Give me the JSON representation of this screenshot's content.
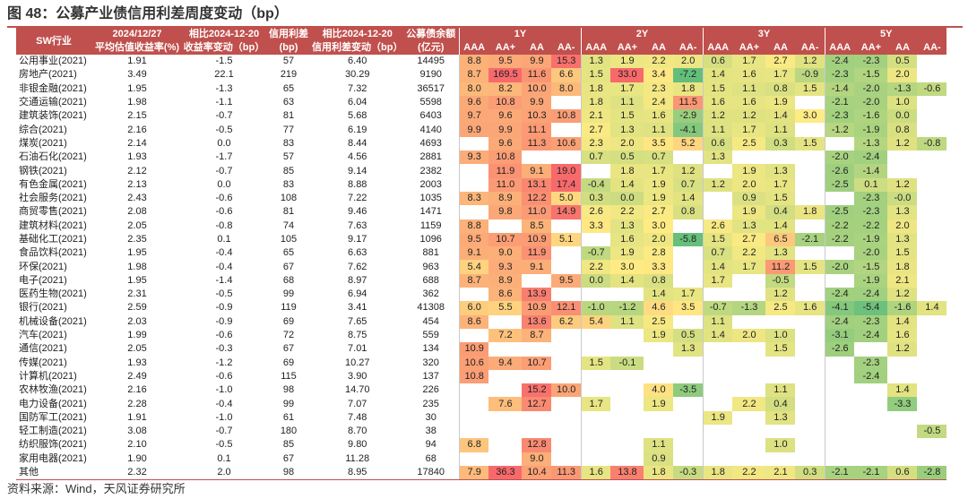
{
  "title": "图 48：公募产业债信用利差周度变动（bp）",
  "source": "资料来源：Wind，天风证券研究所",
  "colors": {
    "header": "#c0504d",
    "high": "#f8696b",
    "mid": "#ffeb84",
    "low": "#63be7b"
  },
  "header": {
    "c_industry": "SW行业",
    "c_yield_line1": "2024/12/27",
    "c_yield_line2": "平均估值收益率(%)",
    "c_ychg_line1": "相比2024-12-20",
    "c_ychg_line2": "收益率变动（bp）",
    "c_spread_line1": "信用利差",
    "c_spread_line2": "(bp)",
    "c_schg_line1": "相比2024-12-20",
    "c_schg_line2": "信用利差变动（bp）",
    "c_bal_line1": "公募债余额",
    "c_bal_line2": "(亿元)",
    "tenors": [
      "1Y",
      "2Y",
      "3Y",
      "5Y"
    ],
    "ratings": [
      "AAA",
      "AA+",
      "AA",
      "AA-"
    ]
  },
  "rows": [
    {
      "name": "公用事业(2021)",
      "y": "1.91",
      "yc": "-1.5",
      "s": "57",
      "sc": "6.40",
      "b": "14495",
      "g": [
        "8.8",
        "9.5",
        "9.9",
        "15.3",
        "1.3",
        "1.9",
        "2.2",
        "2.0",
        "0.6",
        "1.7",
        "2.7",
        "1.2",
        "-2.4",
        "-2.3",
        "0.5",
        ""
      ]
    },
    {
      "name": "房地产(2021)",
      "y": "3.49",
      "yc": "22.1",
      "s": "219",
      "sc": "30.29",
      "b": "9190",
      "g": [
        "8.7",
        "169.5",
        "11.6",
        "6.6",
        "1.5",
        "33.0",
        "3.4",
        "-7.2",
        "1.4",
        "1.6",
        "1.7",
        "-0.9",
        "-2.3",
        "-1.5",
        "2.0",
        ""
      ]
    },
    {
      "name": "非银金融(2021)",
      "y": "1.95",
      "yc": "-1.3",
      "s": "65",
      "sc": "7.32",
      "b": "36517",
      "g": [
        "8.0",
        "8.2",
        "10.0",
        "8.0",
        "1.8",
        "1.7",
        "2.3",
        "1.8",
        "1.5",
        "1.1",
        "0.8",
        "1.5",
        "-1.4",
        "-2.0",
        "-1.3",
        "-0.6"
      ]
    },
    {
      "name": "交通运输(2021)",
      "y": "1.98",
      "yc": "-1.1",
      "s": "63",
      "sc": "6.04",
      "b": "5598",
      "g": [
        "9.6",
        "10.8",
        "9.9",
        "",
        "1.8",
        "1.1",
        "2.4",
        "11.5",
        "1.6",
        "1.6",
        "1.9",
        "",
        "-2.1",
        "-2.0",
        "1.0",
        ""
      ]
    },
    {
      "name": "建筑装饰(2021)",
      "y": "2.15",
      "yc": "-0.7",
      "s": "81",
      "sc": "5.68",
      "b": "6403",
      "g": [
        "9.7",
        "9.6",
        "10.3",
        "10.8",
        "2.1",
        "1.5",
        "1.6",
        "-2.9",
        "1.2",
        "1.2",
        "1.4",
        "3.0",
        "-2.3",
        "-1.6",
        "0.0",
        ""
      ]
    },
    {
      "name": "综合(2021)",
      "y": "2.16",
      "yc": "-0.5",
      "s": "77",
      "sc": "6.19",
      "b": "4140",
      "g": [
        "9.9",
        "9.9",
        "11.1",
        "",
        "2.7",
        "1.3",
        "1.1",
        "-4.1",
        "1.1",
        "1.7",
        "1.1",
        "",
        "-1.2",
        "-1.9",
        "0.8",
        ""
      ]
    },
    {
      "name": "煤炭(2021)",
      "y": "2.14",
      "yc": "0.0",
      "s": "83",
      "sc": "8.44",
      "b": "4693",
      "g": [
        "",
        "9.6",
        "11.3",
        "10.6",
        "2.3",
        "2.0",
        "3.5",
        "5.2",
        "0.6",
        "2.5",
        "0.3",
        "1.5",
        "",
        "-1.3",
        "1.2",
        "-0.8"
      ]
    },
    {
      "name": "石油石化(2021)",
      "y": "1.93",
      "yc": "-1.7",
      "s": "57",
      "sc": "4.56",
      "b": "2881",
      "g": [
        "9.3",
        "10.8",
        "",
        "",
        "0.7",
        "0.5",
        "0.7",
        "",
        "1.3",
        "",
        "",
        "",
        "-2.0",
        "-2.4",
        "",
        ""
      ]
    },
    {
      "name": "钢铁(2021)",
      "y": "2.12",
      "yc": "-0.7",
      "s": "85",
      "sc": "9.14",
      "b": "2382",
      "g": [
        "",
        "11.9",
        "9.1",
        "19.0",
        "",
        "1.8",
        "1.7",
        "1.2",
        "",
        "1.9",
        "1.3",
        "",
        "-2.6",
        "-1.4",
        "",
        ""
      ]
    },
    {
      "name": "有色金属(2021)",
      "y": "2.13",
      "yc": "0.0",
      "s": "83",
      "sc": "8.88",
      "b": "2003",
      "g": [
        "",
        "11.0",
        "13.1",
        "17.4",
        "-0.4",
        "1.4",
        "1.9",
        "0.7",
        "1.2",
        "2.0",
        "1.7",
        "",
        "-2.5",
        "0.1",
        "1.2",
        ""
      ]
    },
    {
      "name": "社会服务(2021)",
      "y": "2.43",
      "yc": "-0.6",
      "s": "108",
      "sc": "7.22",
      "b": "1035",
      "g": [
        "8.3",
        "8.9",
        "12.2",
        "5.0",
        "0.3",
        "0.0",
        "1.9",
        "1.4",
        "",
        "0.9",
        "1.5",
        "",
        "",
        "-2.3",
        "-0.0",
        ""
      ]
    },
    {
      "name": "商贸零售(2021)",
      "y": "2.08",
      "yc": "-0.6",
      "s": "81",
      "sc": "9.46",
      "b": "1471",
      "g": [
        "",
        "9.8",
        "11.0",
        "14.9",
        "2.6",
        "2.2",
        "2.7",
        "0.8",
        "",
        "1.9",
        "0.4",
        "1.8",
        "-2.5",
        "-2.3",
        "1.3",
        ""
      ]
    },
    {
      "name": "建筑材料(2021)",
      "y": "2.05",
      "yc": "-0.8",
      "s": "74",
      "sc": "7.63",
      "b": "1159",
      "g": [
        "8.8",
        "",
        "8.5",
        "",
        "3.3",
        "1.3",
        "3.0",
        "",
        "2.6",
        "1.3",
        "1.4",
        "",
        "-2.2",
        "-2.2",
        "2.0",
        ""
      ]
    },
    {
      "name": "基础化工(2021)",
      "y": "2.35",
      "yc": "0.1",
      "s": "105",
      "sc": "9.17",
      "b": "1096",
      "g": [
        "9.5",
        "10.7",
        "10.9",
        "5.1",
        "",
        "1.6",
        "2.0",
        "-5.8",
        "1.5",
        "2.7",
        "6.5",
        "-2.1",
        "-2.2",
        "-1.9",
        "1.3",
        ""
      ]
    },
    {
      "name": "食品饮料(2021)",
      "y": "1.95",
      "yc": "-0.4",
      "s": "65",
      "sc": "6.63",
      "b": "881",
      "g": [
        "9.1",
        "9.0",
        "11.9",
        "",
        "-0.7",
        "1.9",
        "2.8",
        "",
        "0.7",
        "2.2",
        "1.3",
        "",
        "",
        "-2.0",
        "1.5",
        ""
      ]
    },
    {
      "name": "环保(2021)",
      "y": "1.98",
      "yc": "-0.4",
      "s": "67",
      "sc": "7.62",
      "b": "963",
      "g": [
        "5.4",
        "9.3",
        "9.1",
        "",
        "2.2",
        "3.0",
        "3.3",
        "",
        "1.4",
        "1.7",
        "11.2",
        "1.5",
        "-2.0",
        "-1.5",
        "1.8",
        ""
      ]
    },
    {
      "name": "电子(2021)",
      "y": "1.95",
      "yc": "-1.4",
      "s": "68",
      "sc": "8.97",
      "b": "688",
      "g": [
        "8.7",
        "8.9",
        "",
        "9.5",
        "0.0",
        "1.4",
        "0.8",
        "",
        "1.7",
        "",
        "-0.5",
        "",
        "",
        "-1.9",
        "2.1",
        ""
      ]
    },
    {
      "name": "医药生物(2021)",
      "y": "2.31",
      "yc": "-0.5",
      "s": "99",
      "sc": "6.94",
      "b": "362",
      "g": [
        "",
        "8.6",
        "13.9",
        "",
        "",
        "",
        "1.4",
        "1.7",
        "",
        "",
        "1.2",
        "",
        "-2.4",
        "-2.4",
        "1.2",
        ""
      ]
    },
    {
      "name": "银行(2021)",
      "y": "2.59",
      "yc": "-0.9",
      "s": "119",
      "sc": "3.41",
      "b": "41308",
      "g": [
        "6.0",
        "5.5",
        "10.9",
        "12.1",
        "-1.0",
        "-1.2",
        "4.6",
        "3.5",
        "-0.7",
        "-1.3",
        "2.5",
        "1.6",
        "-4.1",
        "-5.4",
        "-1.6",
        "1.4"
      ]
    },
    {
      "name": "机械设备(2021)",
      "y": "2.03",
      "yc": "-0.9",
      "s": "69",
      "sc": "7.65",
      "b": "454",
      "g": [
        "8.6",
        "",
        "13.6",
        "6.2",
        "5.4",
        "1.1",
        "2.5",
        "",
        "1.1",
        "",
        "",
        "",
        "-2.4",
        "-2.3",
        "1.4",
        ""
      ]
    },
    {
      "name": "汽车(2021)",
      "y": "1.99",
      "yc": "-0.6",
      "s": "72",
      "sc": "8.75",
      "b": "559",
      "g": [
        "",
        "7.2",
        "8.7",
        "",
        "",
        "",
        "1.9",
        "0.5",
        "1.4",
        "2.0",
        "1.0",
        "",
        "-3.1",
        "-2.4",
        "1.6",
        ""
      ]
    },
    {
      "name": "通信(2021)",
      "y": "2.05",
      "yc": "-0.3",
      "s": "67",
      "sc": "7.01",
      "b": "134",
      "g": [
        "10.9",
        "",
        "",
        "",
        "",
        "",
        "",
        "1.3",
        "",
        "",
        "1.5",
        "",
        "-2.6",
        "",
        "1.2",
        ""
      ]
    },
    {
      "name": "传媒(2021)",
      "y": "1.93",
      "yc": "-1.2",
      "s": "69",
      "sc": "10.27",
      "b": "320",
      "g": [
        "10.6",
        "9.4",
        "10.7",
        "",
        "1.5",
        "-0.1",
        "",
        "",
        "",
        "",
        "",
        "",
        "",
        "-2.3",
        "",
        ""
      ]
    },
    {
      "name": "计算机(2021)",
      "y": "2.49",
      "yc": "-0.6",
      "s": "115",
      "sc": "3.90",
      "b": "137",
      "g": [
        "10.8",
        "",
        "",
        "",
        "",
        "",
        "",
        "",
        "",
        "",
        "",
        "",
        "",
        "-2.4",
        "",
        ""
      ]
    },
    {
      "name": "农林牧渔(2021)",
      "y": "2.16",
      "yc": "-1.0",
      "s": "98",
      "sc": "14.70",
      "b": "226",
      "g": [
        "",
        "",
        "15.2",
        "10.0",
        "",
        "",
        "4.0",
        "-3.5",
        "",
        "",
        "1.1",
        "",
        "",
        "",
        "1.4",
        ""
      ]
    },
    {
      "name": "电力设备(2021)",
      "y": "2.28",
      "yc": "-0.4",
      "s": "99",
      "sc": "7.07",
      "b": "235",
      "g": [
        "",
        "7.6",
        "12.7",
        "",
        "1.7",
        "",
        "1.9",
        "",
        "",
        "2.2",
        "0.4",
        "",
        "",
        "",
        "-3.3",
        ""
      ]
    },
    {
      "name": "国防军工(2021)",
      "y": "1.91",
      "yc": "-1.0",
      "s": "61",
      "sc": "7.48",
      "b": "30",
      "g": [
        "",
        "",
        "",
        "",
        "",
        "",
        "",
        "",
        "1.9",
        "",
        "1.3",
        "",
        "",
        "",
        "",
        ""
      ]
    },
    {
      "name": "轻工制造(2021)",
      "y": "3.08",
      "yc": "-0.7",
      "s": "180",
      "sc": "8.70",
      "b": "38",
      "g": [
        "",
        "",
        "",
        "",
        "",
        "",
        "",
        "",
        "",
        "",
        "",
        "",
        "",
        "",
        "",
        "-0.5"
      ]
    },
    {
      "name": "纺织服饰(2021)",
      "y": "2.10",
      "yc": "-0.5",
      "s": "85",
      "sc": "9.80",
      "b": "94",
      "g": [
        "6.8",
        "",
        "12.8",
        "",
        "",
        "",
        "1.1",
        "",
        "",
        "",
        "1.0",
        "",
        "",
        "",
        "",
        ""
      ]
    },
    {
      "name": "家用电器(2021)",
      "y": "1.90",
      "yc": "0.1",
      "s": "67",
      "sc": "11.28",
      "b": "68",
      "g": [
        "",
        "",
        "9.0",
        "",
        "",
        "",
        "0.9",
        "",
        "",
        "",
        "",
        "",
        "",
        "",
        "",
        ""
      ]
    },
    {
      "name": "其他",
      "y": "2.32",
      "yc": "2.0",
      "s": "98",
      "sc": "8.95",
      "b": "17840",
      "g": [
        "7.9",
        "36.3",
        "10.4",
        "11.3",
        "1.6",
        "13.8",
        "1.8",
        "-0.3",
        "1.8",
        "2.2",
        "2.1",
        "0.3",
        "-2.1",
        "-2.1",
        "0.6",
        "-2.8"
      ]
    }
  ]
}
